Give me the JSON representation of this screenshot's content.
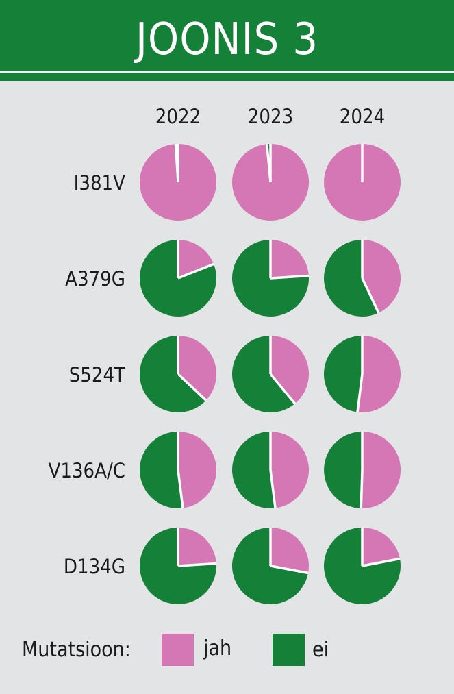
{
  "header": {
    "title": "JOONIS 3"
  },
  "chart_data": {
    "type": "pie",
    "columns": [
      "2022",
      "2023",
      "2024"
    ],
    "rows": [
      {
        "label": "I381V",
        "jah": [
          0.99,
          0.985,
          1.0
        ]
      },
      {
        "label": "A379G",
        "jah": [
          0.19,
          0.24,
          0.43
        ]
      },
      {
        "label": "S524T",
        "jah": [
          0.37,
          0.39,
          0.52
        ]
      },
      {
        "label": "V136A/C",
        "jah": [
          0.48,
          0.48,
          0.505
        ]
      },
      {
        "label": "D134G",
        "jah": [
          0.24,
          0.28,
          0.22
        ]
      }
    ],
    "series": [
      {
        "name": "jah",
        "color": "#d477b4"
      },
      {
        "name": "ei",
        "color": "#148038"
      }
    ]
  },
  "legend": {
    "title": "Mutatsioon:",
    "items": [
      {
        "label": "jah",
        "color": "#d477b4"
      },
      {
        "label": "ei",
        "color": "#148038"
      }
    ]
  }
}
